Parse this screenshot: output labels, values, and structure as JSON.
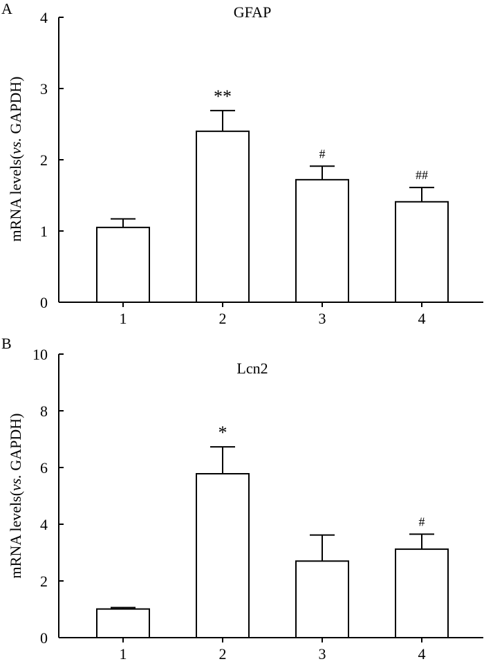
{
  "chart_data": [
    {
      "panel_label": "A",
      "type": "bar",
      "title": "GFAP",
      "ylabel_prefix": "mRNA levels(",
      "ylabel_italic": "vs.",
      "ylabel_suffix": " GAPDH)",
      "xlabel": "",
      "ylim": [
        0,
        4
      ],
      "yticks": [
        "0",
        "1",
        "2",
        "3",
        "4"
      ],
      "categories": [
        "1",
        "2",
        "3",
        "4"
      ],
      "values": [
        1.05,
        2.4,
        1.72,
        1.41
      ],
      "errors": [
        0.12,
        0.29,
        0.19,
        0.2
      ],
      "annotations": [
        "",
        "**",
        "#",
        "##"
      ]
    },
    {
      "panel_label": "B",
      "type": "bar",
      "title": "Lcn2",
      "ylabel_prefix": "mRNA levels(",
      "ylabel_italic": "vs.",
      "ylabel_suffix": " GAPDH)",
      "xlabel": "",
      "ylim": [
        0,
        10
      ],
      "yticks": [
        "0",
        "2",
        "4",
        "6",
        "8",
        "10"
      ],
      "categories": [
        "1",
        "2",
        "3",
        "4"
      ],
      "values": [
        1.01,
        5.78,
        2.7,
        3.12
      ],
      "errors": [
        0.05,
        0.95,
        0.92,
        0.53
      ],
      "annotations": [
        "",
        "*",
        "",
        "#"
      ]
    }
  ]
}
